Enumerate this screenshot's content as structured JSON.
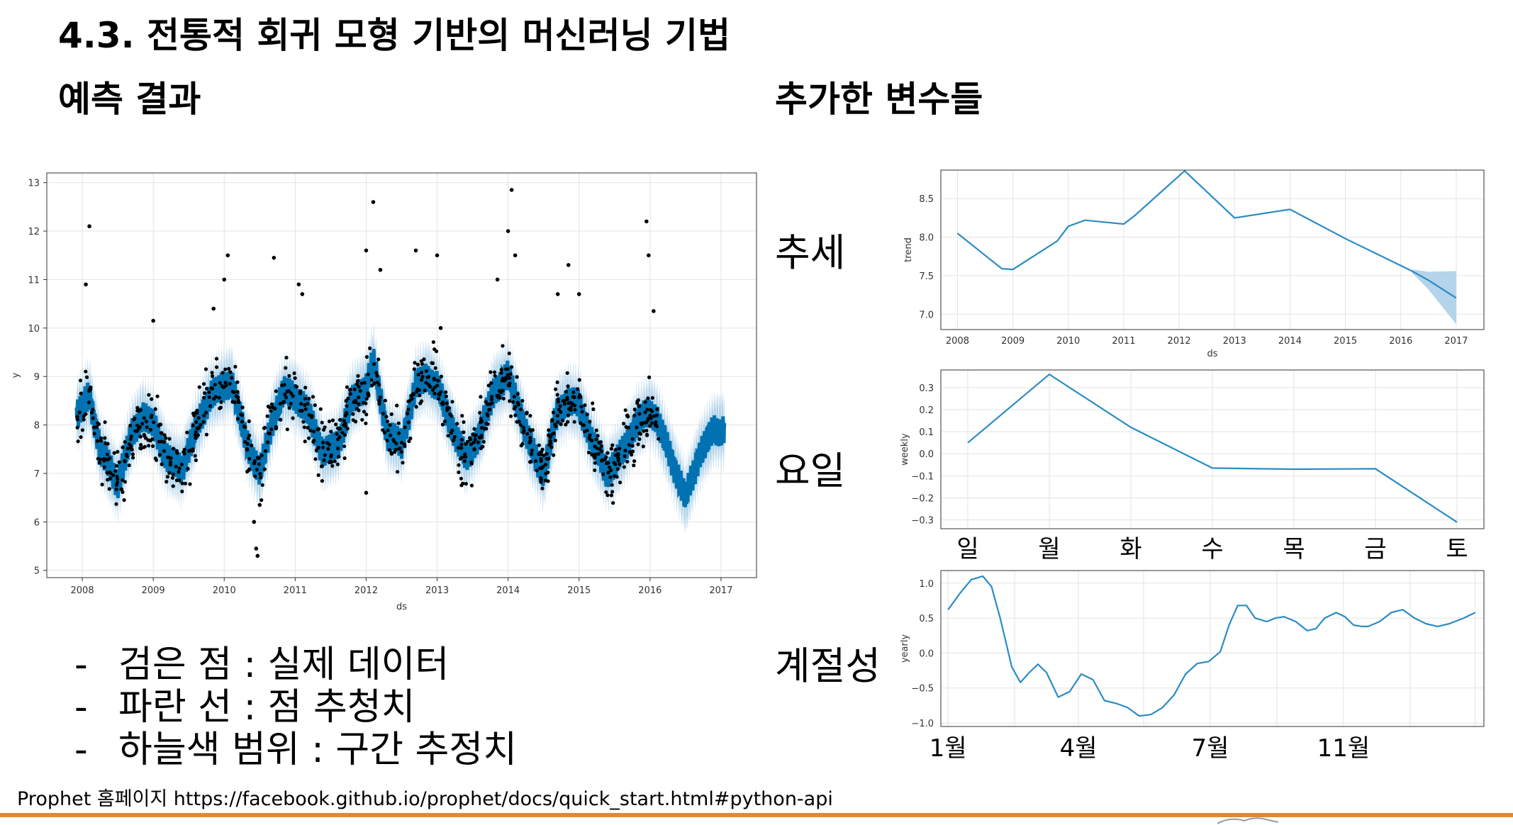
{
  "slide": {
    "title": "4.3. 전통적 회귀 모형 기반의 머신러닝 기법",
    "left_heading": "예측 결과",
    "right_heading": "추가한 변수들",
    "labels": {
      "trend": "추세",
      "weekly": "요일",
      "yearly": "계절성"
    },
    "legend": {
      "dash": "-",
      "items": [
        "검은 점 : 실제 데이터",
        "파란 선 : 점 추청치",
        "하늘색 범위 : 구간 추정치"
      ]
    },
    "footer": "Prophet 홈페이지  https://facebook.github.io/prophet/docs/quick_start.html#python-api",
    "accent_color": "#d98b3a"
  },
  "chart_data": [
    {
      "id": "forecast",
      "type": "scatter",
      "title": "",
      "xlabel": "ds",
      "ylabel": "y",
      "xlim": [
        2007.5,
        2017.5
      ],
      "ylim": [
        4.85,
        13.2
      ],
      "xticks": [
        "2008",
        "2009",
        "2010",
        "2011",
        "2012",
        "2013",
        "2014",
        "2015",
        "2016",
        "2017"
      ],
      "yticks": [
        5,
        6,
        7,
        8,
        9,
        10,
        11,
        12,
        13
      ],
      "grid": true,
      "colors": {
        "line": "#0072b2",
        "band": "#b3d4ea",
        "points": "#000000"
      },
      "series": [
        {
          "name": "forecast yhat",
          "kind": "line",
          "x": [
            2007.92,
            2008.1,
            2008.25,
            2008.5,
            2008.7,
            2008.85,
            2009.0,
            2009.2,
            2009.4,
            2009.6,
            2009.8,
            2010.0,
            2010.1,
            2010.3,
            2010.5,
            2010.7,
            2010.85,
            2011.0,
            2011.2,
            2011.4,
            2011.6,
            2011.8,
            2012.0,
            2012.1,
            2012.3,
            2012.5,
            2012.7,
            2012.85,
            2013.0,
            2013.2,
            2013.4,
            2013.6,
            2013.8,
            2014.0,
            2014.1,
            2014.3,
            2014.5,
            2014.7,
            2014.85,
            2015.0,
            2015.2,
            2015.4,
            2015.6,
            2015.8,
            2016.0,
            2016.1,
            2016.3,
            2016.5,
            2016.7,
            2016.9,
            2017.05
          ],
          "y": [
            8.2,
            8.6,
            7.5,
            6.8,
            7.8,
            8.2,
            8.0,
            7.3,
            7.1,
            7.9,
            8.6,
            8.8,
            8.9,
            7.7,
            7.0,
            8.2,
            8.7,
            8.6,
            8.2,
            7.4,
            7.6,
            8.5,
            8.8,
            9.3,
            7.8,
            7.6,
            8.8,
            9.0,
            8.8,
            8.0,
            7.3,
            7.8,
            8.7,
            9.0,
            8.6,
            7.6,
            7.0,
            8.3,
            8.5,
            8.4,
            7.6,
            7.0,
            7.4,
            8.0,
            8.3,
            8.1,
            7.3,
            6.5,
            7.4,
            7.9,
            7.9
          ]
        },
        {
          "name": "band",
          "kind": "interval",
          "halfwidth": 0.55
        },
        {
          "name": "observed",
          "kind": "points",
          "count": 900
        }
      ],
      "outliers": [
        {
          "x": 2008.1,
          "y": 12.1
        },
        {
          "x": 2008.05,
          "y": 10.9
        },
        {
          "x": 2009.0,
          "y": 10.15
        },
        {
          "x": 2010.05,
          "y": 11.5
        },
        {
          "x": 2010.0,
          "y": 11.0
        },
        {
          "x": 2010.7,
          "y": 11.45
        },
        {
          "x": 2011.05,
          "y": 10.9
        },
        {
          "x": 2011.1,
          "y": 10.7
        },
        {
          "x": 2012.1,
          "y": 12.6
        },
        {
          "x": 2012.0,
          "y": 11.6
        },
        {
          "x": 2012.2,
          "y": 11.2
        },
        {
          "x": 2012.7,
          "y": 11.6
        },
        {
          "x": 2013.0,
          "y": 11.5
        },
        {
          "x": 2014.05,
          "y": 12.85
        },
        {
          "x": 2014.0,
          "y": 12.0
        },
        {
          "x": 2013.85,
          "y": 11.0
        },
        {
          "x": 2014.1,
          "y": 11.5
        },
        {
          "x": 2014.7,
          "y": 10.7
        },
        {
          "x": 2014.85,
          "y": 11.3
        },
        {
          "x": 2015.0,
          "y": 10.7
        },
        {
          "x": 2015.95,
          "y": 12.2
        },
        {
          "x": 2015.98,
          "y": 11.5
        },
        {
          "x": 2016.05,
          "y": 10.35
        },
        {
          "x": 2012.0,
          "y": 6.6
        },
        {
          "x": 2010.45,
          "y": 5.45
        },
        {
          "x": 2010.47,
          "y": 5.3
        },
        {
          "x": 2010.42,
          "y": 6.0
        },
        {
          "x": 2010.5,
          "y": 6.35
        },
        {
          "x": 2009.85,
          "y": 10.4
        },
        {
          "x": 2013.05,
          "y": 10.0
        }
      ]
    },
    {
      "id": "trend",
      "type": "line",
      "title": "",
      "xlabel": "ds",
      "ylabel": "trend",
      "xlim": [
        2007.7,
        2017.5
      ],
      "ylim": [
        6.8,
        8.87
      ],
      "xticks": [
        "2008",
        "2009",
        "2010",
        "2011",
        "2012",
        "2013",
        "2014",
        "2015",
        "2016",
        "2017"
      ],
      "yticks": [
        "7.0",
        "7.5",
        "8.0",
        "8.5"
      ],
      "grid": true,
      "colors": {
        "line": "#2b8cc4",
        "band": "#b3d4ea"
      },
      "x": [
        2008.0,
        2008.8,
        2009.0,
        2009.8,
        2010.0,
        2010.3,
        2011.0,
        2011.2,
        2012.1,
        2013.0,
        2014.0,
        2015.0,
        2016.0,
        2016.2,
        2016.5,
        2017.0
      ],
      "y": [
        8.05,
        7.59,
        7.58,
        7.95,
        8.14,
        8.22,
        8.17,
        8.28,
        8.86,
        8.25,
        8.36,
        7.98,
        7.63,
        7.56,
        7.44,
        7.21
      ],
      "band": {
        "x": [
          2016.2,
          2016.5,
          2017.0
        ],
        "lower": [
          7.54,
          7.32,
          6.87
        ],
        "upper": [
          7.58,
          7.55,
          7.56
        ]
      }
    },
    {
      "id": "weekly",
      "type": "line",
      "title": "",
      "xlabel": "",
      "ylabel": "weekly",
      "ylim": [
        -0.34,
        0.38
      ],
      "categories": [
        "일",
        "월",
        "화",
        "수",
        "목",
        "금",
        "토"
      ],
      "yticks": [
        "0.3",
        "0.2",
        "0.1",
        "0.0",
        "−0.1",
        "−0.2",
        "−0.3"
      ],
      "grid": true,
      "colors": {
        "line": "#2b8cc4"
      },
      "values": [
        0.05,
        0.36,
        0.12,
        -0.065,
        -0.07,
        -0.068,
        -0.31
      ]
    },
    {
      "id": "yearly",
      "type": "line",
      "title": "",
      "xlabel": "",
      "ylabel": "yearly",
      "xlim": [
        -5,
        370
      ],
      "ylim": [
        -1.05,
        1.18
      ],
      "yticks": [
        "1.0",
        "0.5",
        "0.0",
        "−0.5",
        "−1.0"
      ],
      "xtick_labels": [
        "1월",
        "4월",
        "7월",
        "11월"
      ],
      "xtick_days": [
        0,
        90,
        181,
        273
      ],
      "grid_days": [
        0,
        46,
        90,
        135,
        181,
        227,
        273,
        319,
        364
      ],
      "grid": true,
      "colors": {
        "line": "#2b8cc4"
      },
      "x": [
        0,
        8,
        16,
        24,
        30,
        36,
        44,
        50,
        56,
        62,
        68,
        76,
        84,
        92,
        100,
        108,
        116,
        124,
        132,
        140,
        148,
        156,
        164,
        172,
        180,
        188,
        194,
        200,
        206,
        212,
        220,
        226,
        232,
        240,
        248,
        254,
        260,
        268,
        274,
        280,
        286,
        290,
        298,
        306,
        314,
        322,
        330,
        338,
        346,
        356,
        364
      ],
      "y": [
        0.62,
        0.85,
        1.05,
        1.1,
        0.95,
        0.5,
        -0.2,
        -0.42,
        -0.28,
        -0.16,
        -0.28,
        -0.63,
        -0.55,
        -0.3,
        -0.38,
        -0.68,
        -0.72,
        -0.78,
        -0.9,
        -0.88,
        -0.78,
        -0.6,
        -0.3,
        -0.15,
        -0.12,
        0.02,
        0.4,
        0.68,
        0.68,
        0.5,
        0.45,
        0.5,
        0.52,
        0.45,
        0.32,
        0.35,
        0.5,
        0.58,
        0.52,
        0.4,
        0.38,
        0.38,
        0.45,
        0.58,
        0.62,
        0.5,
        0.42,
        0.38,
        0.42,
        0.5,
        0.58
      ]
    }
  ]
}
